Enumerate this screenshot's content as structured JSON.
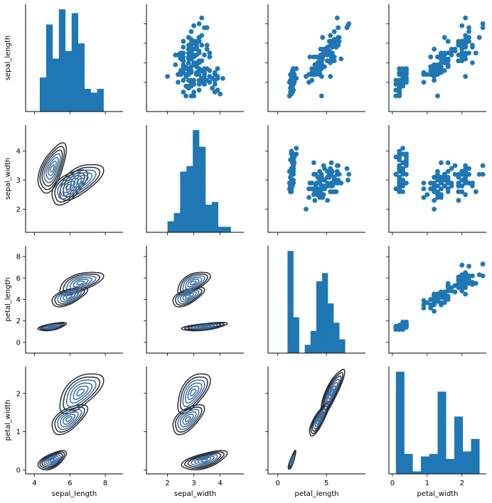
{
  "chart_data": {
    "type": "pairgrid",
    "variables": [
      "sepal_length",
      "sepal_width",
      "petal_length",
      "petal_width"
    ],
    "upper": "scatter",
    "diag": "hist",
    "lower": "kde",
    "colors": {
      "mark": "#1f77b4",
      "contour_dark": "#2b2f38",
      "contour_light": "#3f6e9e"
    },
    "axes": {
      "sepal_length": {
        "lim": [
          3.5,
          9.0
        ],
        "ticks": [
          4,
          6,
          8
        ],
        "dispLim": [
          4.0,
          8.2
        ],
        "dispTicks": [
          5,
          6,
          7,
          8
        ]
      },
      "sepal_width": {
        "lim": [
          1.2,
          4.9
        ],
        "ticks": [
          2,
          3,
          4
        ],
        "dispLim": [
          1.2,
          4.9
        ],
        "dispTicks": [
          2,
          3,
          4
        ]
      },
      "petal_length": {
        "lim": [
          -1.0,
          9.0
        ],
        "ticks": [
          0,
          5
        ],
        "dispLim": [
          -1.0,
          9.2
        ],
        "dispTicks": [
          0,
          2,
          4,
          6,
          8
        ]
      },
      "petal_width": {
        "lim": [
          -0.1,
          2.7
        ],
        "ticks": [
          0,
          1,
          2
        ],
        "dispLim": [
          -0.9,
          3.5
        ],
        "dispTicks": [
          0,
          1,
          2,
          3
        ]
      }
    },
    "hist": {
      "sepal_length": {
        "bins": [
          4.3,
          4.66,
          5.02,
          5.38,
          5.74,
          6.1,
          6.46,
          6.82,
          7.18,
          7.54,
          7.9
        ],
        "counts": [
          9,
          23,
          14,
          27,
          16,
          26,
          18,
          6,
          5,
          6
        ]
      },
      "sepal_width": {
        "bins": [
          2.0,
          2.24,
          2.48,
          2.72,
          2.96,
          3.2,
          3.44,
          3.68,
          3.92,
          4.16,
          4.4
        ],
        "counts": [
          4,
          7,
          22,
          24,
          37,
          31,
          10,
          11,
          2,
          2
        ]
      },
      "petal_length": {
        "bins": [
          1.0,
          1.59,
          2.18,
          2.77,
          3.36,
          3.95,
          4.54,
          5.13,
          5.72,
          6.31,
          6.9
        ],
        "counts": [
          37,
          13,
          0,
          3,
          8,
          26,
          29,
          18,
          11,
          5
        ]
      },
      "petal_width": {
        "bins": [
          0.1,
          0.34,
          0.58,
          0.82,
          1.06,
          1.3,
          1.54,
          1.78,
          2.02,
          2.26,
          2.5
        ],
        "counts": [
          41,
          8,
          1,
          7,
          8,
          33,
          6,
          23,
          9,
          14
        ]
      }
    },
    "species_params": [
      {
        "sepal_length": [
          5.0,
          0.35
        ],
        "sepal_width": [
          3.4,
          0.38
        ],
        "petal_length": [
          1.46,
          0.17
        ],
        "petal_width": [
          0.25,
          0.11
        ]
      },
      {
        "sepal_length": [
          5.94,
          0.52
        ],
        "sepal_width": [
          2.77,
          0.31
        ],
        "petal_length": [
          4.26,
          0.47
        ],
        "petal_width": [
          1.33,
          0.2
        ]
      },
      {
        "sepal_length": [
          6.59,
          0.64
        ],
        "sepal_width": [
          2.97,
          0.32
        ],
        "petal_length": [
          5.55,
          0.55
        ],
        "petal_width": [
          2.03,
          0.27
        ]
      }
    ]
  }
}
